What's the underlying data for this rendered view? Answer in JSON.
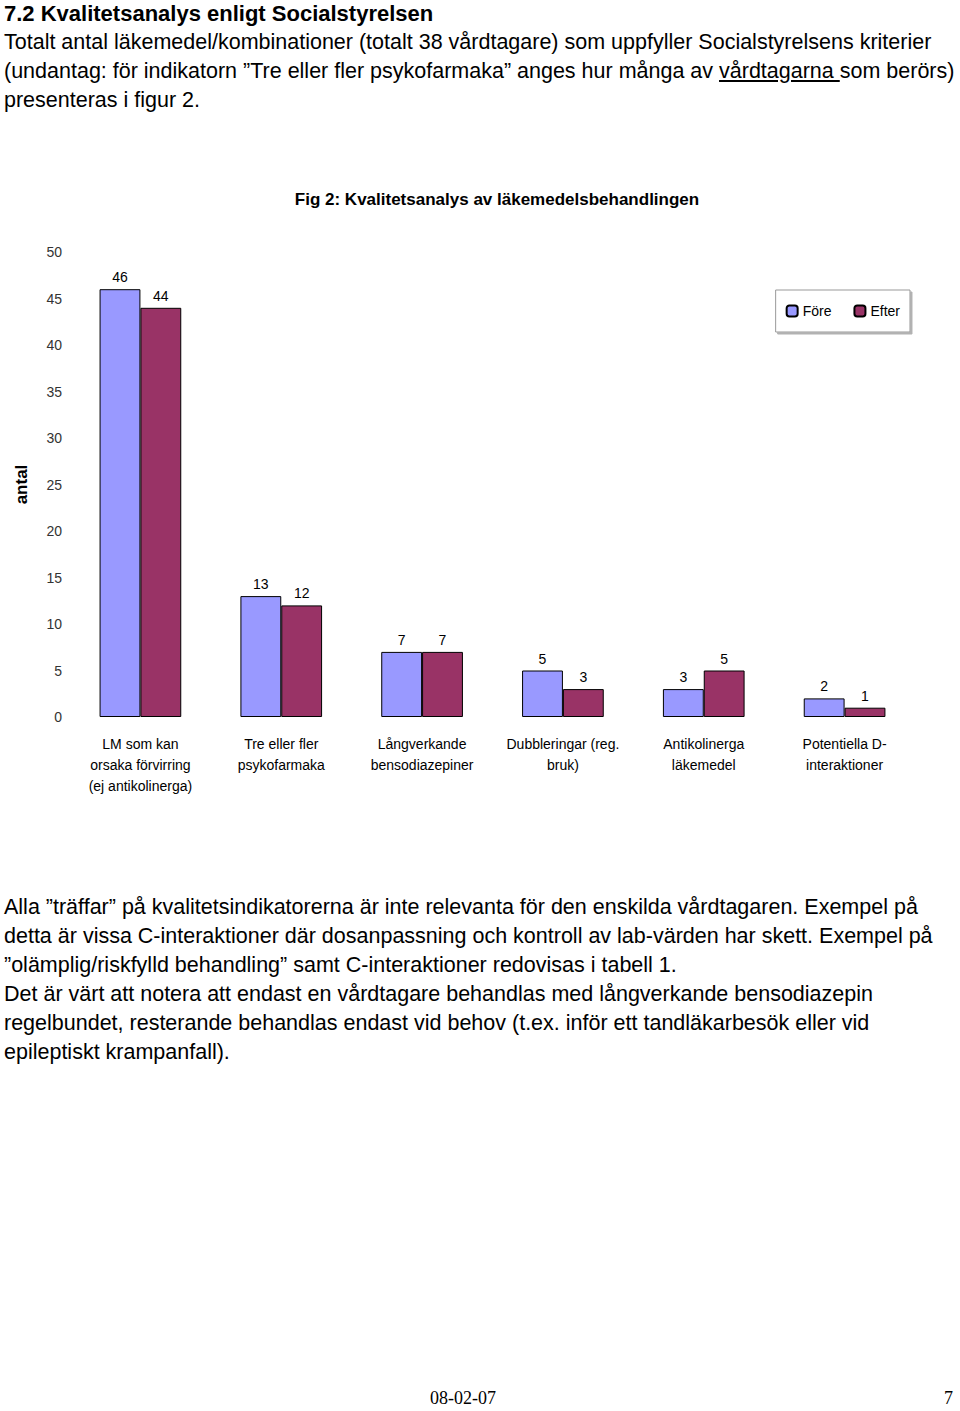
{
  "heading": "7.2 Kvalitetsanalys enligt Socialstyrelsen",
  "intro": [
    "Totalt antal läkemedel/kombinationer (totalt 38 vårdtagare) som uppfyller Socialstyrelsens kriterier (undantag: för indikatorn ”Tre eller fler psykofarmaka” anges hur många av ",
    "vårdtagarna ",
    "som berörs) presenteras i figur 2."
  ],
  "chart_data": {
    "type": "bar",
    "title": "Fig 2: Kvalitetsanalys av läkemedelsbehandlingen",
    "y_label": "antal",
    "categories": [
      "LM som kan\norsaka förvirring\n(ej antikolinerga)",
      "Tre eller fler\npsykofarmaka",
      "Långverkande\nbensodiazepiner",
      "Dubbleringar (reg.\nbruk)",
      "Antikolinerga\nläkemedel",
      "Potentiella D-\ninteraktioner"
    ],
    "series": [
      {
        "name": "Före",
        "color": "#9999ff",
        "values": [
          46,
          13,
          7,
          5,
          3,
          2
        ]
      },
      {
        "name": "Efter",
        "color": "#993366",
        "values": [
          44,
          12,
          7,
          3,
          5,
          1
        ]
      }
    ],
    "ylim": [
      0,
      50
    ],
    "yticks": [
      0,
      5,
      10,
      15,
      20,
      25,
      30,
      35,
      40,
      45,
      50
    ],
    "grid": false,
    "legend": "upper right",
    "data_labels": true
  },
  "paragraphs": [
    "Alla ”träffar” på kvalitetsindikatorerna är inte relevanta för den enskilda vårdtagaren. Exempel på detta är vissa C-interaktioner där dosanpassning och kontroll av lab-värden har skett. Exempel på ”olämplig/riskfylld behandling” samt C-interaktioner redovisas i tabell 1.",
    "Det är värt att notera att endast en vårdtagare behandlas med långverkande bensodiazepin regelbundet, resterande behandlas endast vid behov (t.ex. inför ett tandläkarbesök eller vid epileptiskt krampanfall)."
  ],
  "footer": {
    "date": "08-02-07",
    "page": "7"
  }
}
